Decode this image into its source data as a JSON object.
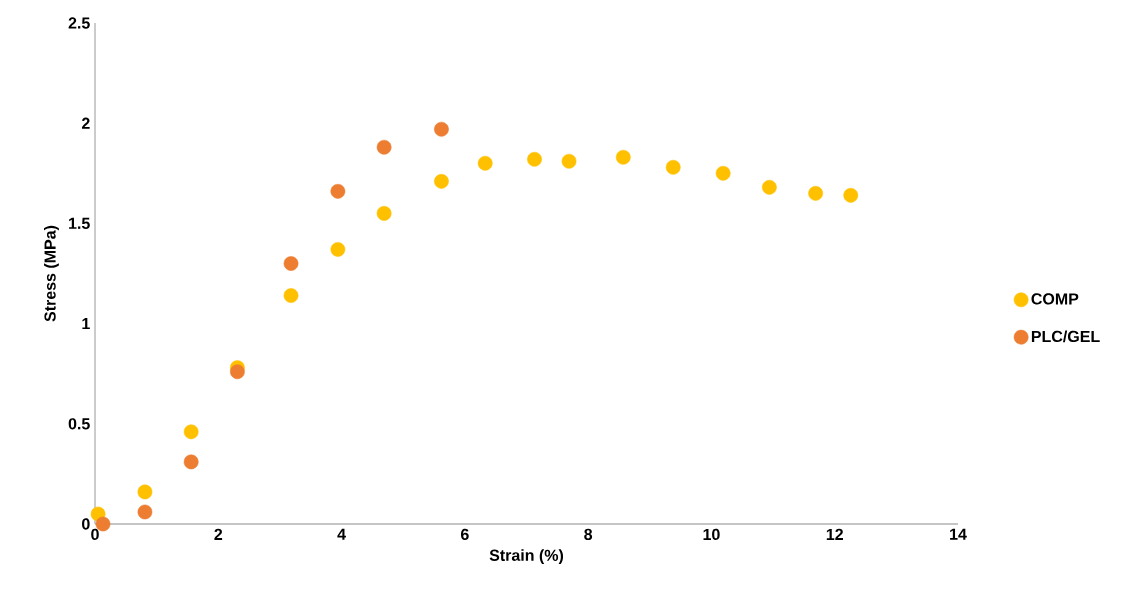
{
  "chart_data": {
    "type": "scatter",
    "xlabel": "Strain (%)",
    "ylabel": "Stress (MPa)",
    "xlim": [
      0,
      14
    ],
    "ylim": [
      0,
      2.5
    ],
    "xticks": [
      0,
      2,
      4,
      6,
      8,
      10,
      12,
      14
    ],
    "yticks": [
      0,
      0.5,
      1,
      1.5,
      2,
      2.5
    ],
    "marker": "circle",
    "legend": "right",
    "series": [
      {
        "name": "COMP",
        "color": "#ffc000",
        "x": [
          0.05,
          0.81,
          1.56,
          2.31,
          3.18,
          3.94,
          4.69,
          5.62,
          6.33,
          7.13,
          7.69,
          8.57,
          9.38,
          10.19,
          10.94,
          11.69,
          12.26
        ],
        "values": [
          0.05,
          0.16,
          0.46,
          0.78,
          1.14,
          1.37,
          1.55,
          1.71,
          1.8,
          1.82,
          1.81,
          1.83,
          1.78,
          1.75,
          1.68,
          1.65,
          1.64
        ]
      },
      {
        "name": "PLC/GEL",
        "color": "#ed7d31",
        "x": [
          0.13,
          0.81,
          1.56,
          2.31,
          3.18,
          3.94,
          4.69,
          5.62
        ],
        "values": [
          0.0,
          0.06,
          0.31,
          0.76,
          1.3,
          1.66,
          1.88,
          1.97
        ]
      }
    ]
  }
}
